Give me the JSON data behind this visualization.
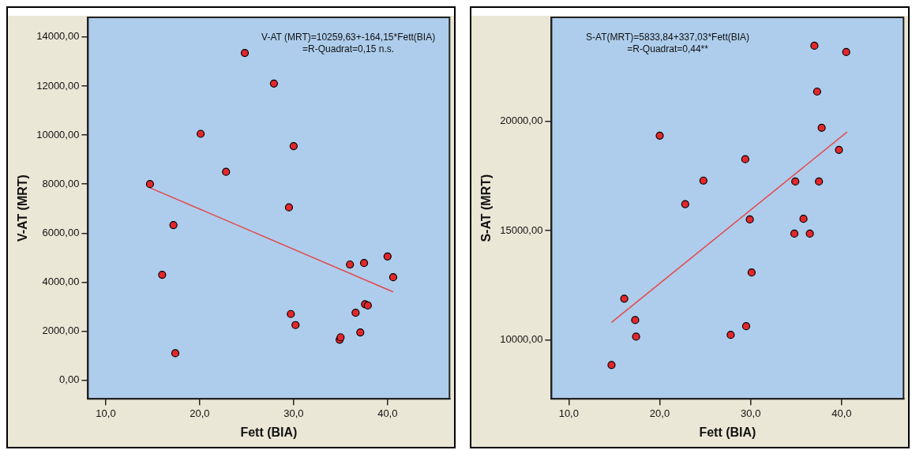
{
  "chart_data": [
    {
      "type": "scatter",
      "xlabel": "Fett (BIA)",
      "ylabel": "V-AT (MRT)",
      "annotations": [
        "V-AT (MRT)=10259,63+-164,15*Fett(BIA)",
        "=R-Quadrat=0,15 n.s."
      ],
      "grid": false,
      "legend": false,
      "xlim": [
        8.1,
        46.6
      ],
      "ylim": [
        -760,
        14800
      ],
      "xticks": [
        {
          "value": 10,
          "label": "10,0"
        },
        {
          "value": 20,
          "label": "20,0"
        },
        {
          "value": 30,
          "label": "30,0"
        },
        {
          "value": 40,
          "label": "40,0"
        }
      ],
      "yticks": [
        {
          "value": 0,
          "label": "0,00"
        },
        {
          "value": 2000,
          "label": "2000,00"
        },
        {
          "value": 4000,
          "label": "4000,00"
        },
        {
          "value": 6000,
          "label": "6000,00"
        },
        {
          "value": 8000,
          "label": "8000,00"
        },
        {
          "value": 10000,
          "label": "10000,00"
        },
        {
          "value": 12000,
          "label": "12000,00"
        },
        {
          "value": 14000,
          "label": "14000,00"
        }
      ],
      "series": [
        {
          "marker": "circle",
          "color": "#e3272b",
          "x": [
            14.7,
            17.2,
            16.0,
            17.4,
            20.1,
            22.8,
            24.8,
            27.9,
            30.0,
            29.5,
            29.7,
            30.2,
            34.9,
            35.0,
            36.0,
            36.6,
            37.1,
            37.5,
            37.6,
            37.9,
            40.0,
            40.6
          ],
          "values": [
            8000,
            6330,
            4300,
            1100,
            10050,
            8500,
            13350,
            12100,
            9550,
            7050,
            2700,
            2250,
            1650,
            1750,
            4720,
            2750,
            1950,
            4780,
            3100,
            3050,
            5050,
            4200
          ]
        },
        {
          "type": "line",
          "color": "#e5484b",
          "line_style": "solid",
          "x": [
            14.7,
            40.6
          ],
          "values": [
            7850,
            3600
          ]
        }
      ]
    },
    {
      "type": "scatter",
      "xlabel": "Fett (BIA)",
      "ylabel": "S-AT (MRT)",
      "annotations": [
        "S-AT(MRT)=5833,84+337,03*Fett(BIA)",
        "=R-Quadrat=0,44**"
      ],
      "grid": false,
      "legend": false,
      "xlim": [
        8.1,
        46.8
      ],
      "ylim": [
        7290,
        24770
      ],
      "xticks": [
        {
          "value": 10,
          "label": "10,0"
        },
        {
          "value": 20,
          "label": "20,0"
        },
        {
          "value": 30,
          "label": "30,0"
        },
        {
          "value": 40,
          "label": "40,0"
        }
      ],
      "yticks": [
        {
          "value": 10000,
          "label": "10000,00"
        },
        {
          "value": 15000,
          "label": "15000,00"
        },
        {
          "value": 20000,
          "label": "20000,00"
        }
      ],
      "series": [
        {
          "marker": "circle",
          "color": "#e3272b",
          "x": [
            14.7,
            16.1,
            17.3,
            17.4,
            20.0,
            22.8,
            24.8,
            27.8,
            29.4,
            29.5,
            29.9,
            30.1,
            34.8,
            34.9,
            35.8,
            36.5,
            37.0,
            37.3,
            37.5,
            37.8,
            39.7,
            40.5
          ],
          "values": [
            8840,
            11880,
            10900,
            10140,
            19350,
            16210,
            17290,
            10220,
            18270,
            10620,
            15510,
            13080,
            14860,
            17250,
            15540,
            14860,
            23470,
            21370,
            17250,
            19710,
            18700,
            23180
          ]
        },
        {
          "type": "line",
          "color": "#e5484b",
          "line_style": "solid",
          "x": [
            14.7,
            40.6
          ],
          "values": [
            10790,
            19520
          ]
        }
      ]
    }
  ]
}
